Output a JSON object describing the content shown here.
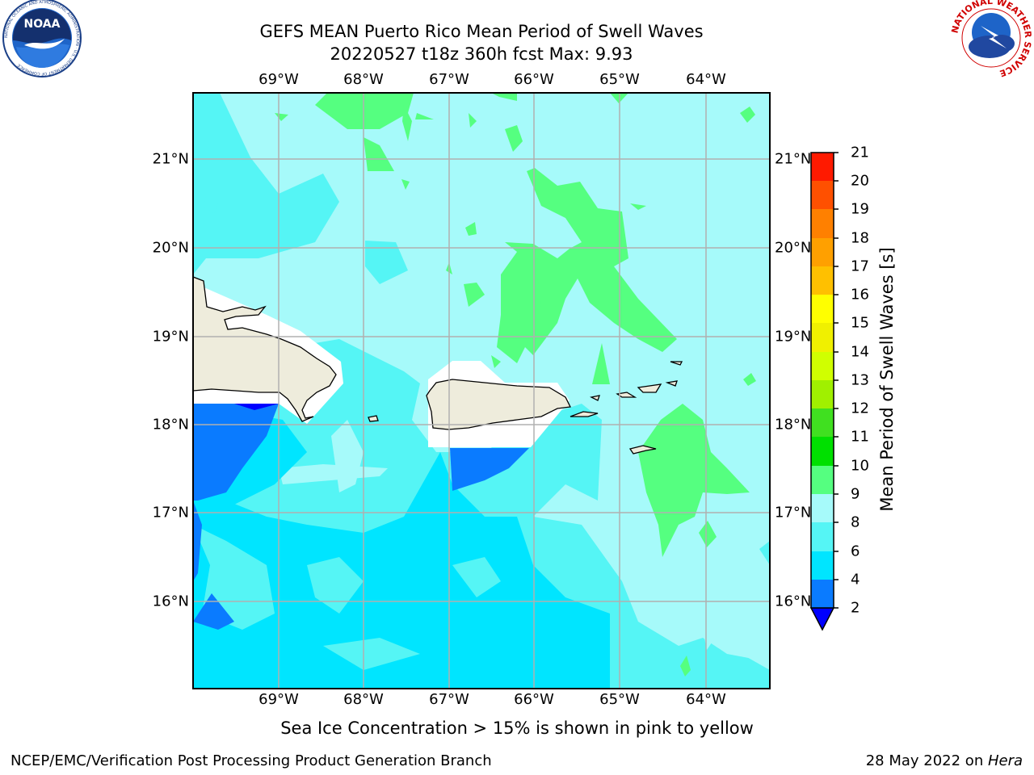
{
  "header": {
    "title_line1": "GEFS MEAN Puerto Rico Mean Period of Swell Waves",
    "title_line2": "20220527 t18z 360h fcst   Max: 9.93"
  },
  "logos": {
    "noaa": {
      "text": "NOAA",
      "ring_text": "NATIONAL OCEANIC AND ATMOSPHERIC ADMINISTRATION · U.S. DEPARTMENT OF COMMERCE"
    },
    "nws": {
      "ring_text": "NATIONAL WEATHER SERVICE"
    }
  },
  "map": {
    "lon_labels": [
      "69°W",
      "68°W",
      "67°W",
      "66°W",
      "65°W",
      "64°W"
    ],
    "lat_labels": [
      "21°N",
      "20°N",
      "19°N",
      "18°N",
      "17°N",
      "16°N"
    ],
    "extent": {
      "lon_min": -70.0,
      "lon_max": -63.3,
      "lat_min": 15.0,
      "lat_max": 21.75
    },
    "land_color": "#eeecdc",
    "grid_color": "#b0b0b0"
  },
  "colorbar": {
    "title": "Mean Period of Swell Waves [s]",
    "ticks": [
      "2",
      "4",
      "6",
      "8",
      "9",
      "10",
      "11",
      "12",
      "13",
      "14",
      "15",
      "16",
      "17",
      "18",
      "19",
      "20",
      "21"
    ],
    "levels": [
      {
        "from": 2,
        "to": 4,
        "color": "#0a7bff"
      },
      {
        "from": 4,
        "to": 6,
        "color": "#00e5ff"
      },
      {
        "from": 6,
        "to": 8,
        "color": "#55f5f5"
      },
      {
        "from": 8,
        "to": 9,
        "color": "#a6fafa"
      },
      {
        "from": 9,
        "to": 10,
        "color": "#55ff80"
      },
      {
        "from": 10,
        "to": 11,
        "color": "#00e000"
      },
      {
        "from": 11,
        "to": 12,
        "color": "#40e020"
      },
      {
        "from": 12,
        "to": 13,
        "color": "#a0f000"
      },
      {
        "from": 13,
        "to": 14,
        "color": "#d0ff00"
      },
      {
        "from": 14,
        "to": 15,
        "color": "#f0f000"
      },
      {
        "from": 15,
        "to": 16,
        "color": "#ffff00"
      },
      {
        "from": 16,
        "to": 17,
        "color": "#ffc000"
      },
      {
        "from": 17,
        "to": 18,
        "color": "#ffa000"
      },
      {
        "from": 18,
        "to": 19,
        "color": "#ff8000"
      },
      {
        "from": 19,
        "to": 20,
        "color": "#ff5000"
      },
      {
        "from": 20,
        "to": 21,
        "color": "#ff1a00"
      }
    ],
    "under_color": "#0000ff"
  },
  "note": "Sea Ice Concentration > 15% is shown in pink to yellow",
  "footer": {
    "left": "NCEP/EMC/Verification Post Processing Product Generation Branch",
    "right_prefix": "28 May 2022 on ",
    "right_machine": "Hera"
  }
}
